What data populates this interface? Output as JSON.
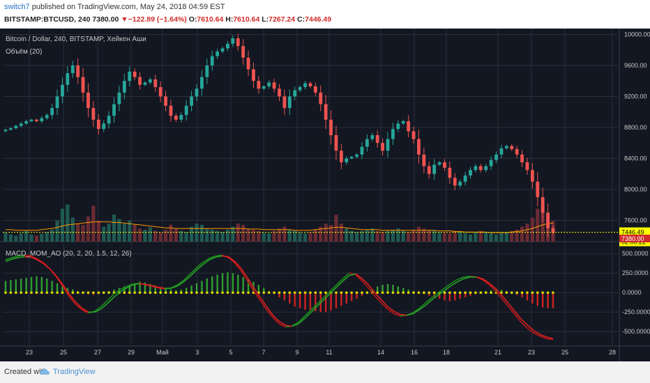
{
  "header": {
    "user": "switch7",
    "published": "published on TradingView.com, May 24, 2018 04:59 EST",
    "symbol": "BITSTAMP:BTCUSD, 240",
    "last": "7380.00",
    "change": "−122.89 (−1.64%)",
    "o_label": "O:",
    "o_value": "7610.64",
    "h_label": "H:",
    "h_value": "7610.64",
    "l_label": "L:",
    "l_value": "7267.24",
    "c_label": "C:",
    "c_value": "7446.49"
  },
  "legend": {
    "main": "Bitcoin / Dollar, 240, BITSTAMP, Хейкен Аши",
    "volume": "Объём (20)",
    "macd": "MACD_MOM_AO (20, 2, 20, 1.5, 12, 26)"
  },
  "footer": {
    "created": "Created with",
    "brand": "TradingView"
  },
  "colors": {
    "bg": "#131722",
    "up": "#26a69a",
    "down": "#ef5350",
    "grid": "#2a2e39",
    "price_line": "#ffff00",
    "ma": "#ff9800"
  },
  "chart_data": [
    {
      "type": "candlestick",
      "title": "Bitcoin / Dollar, 240, BITSTAMP, Хейкен Аши",
      "ylim": [
        7380,
        10040
      ],
      "yticks": [
        10000,
        9600,
        9200,
        8800,
        8400,
        8000,
        7600
      ],
      "ytick_labels": [
        "10000.00",
        "9600.00",
        "9200.00",
        "8800.00",
        "8400.00",
        "8000.00",
        "7600.00"
      ],
      "xtick_labels": [
        "23",
        "25",
        "27",
        "29",
        "Май",
        "3",
        "5",
        "7",
        "9",
        "11",
        "14",
        "16",
        "18",
        "21",
        "23",
        "25",
        "28"
      ],
      "price_label": "7446.49",
      "countdown_label": "02:00:22",
      "volume_label": "7380.00",
      "closes": [
        8770,
        8790,
        8820,
        8850,
        8880,
        8900,
        8880,
        8920,
        8960,
        9050,
        9200,
        9350,
        9500,
        9600,
        9450,
        9250,
        9050,
        8900,
        8780,
        8850,
        8950,
        9100,
        9250,
        9400,
        9520,
        9450,
        9350,
        9380,
        9420,
        9320,
        9200,
        9080,
        8950,
        8900,
        8960,
        9080,
        9200,
        9300,
        9450,
        9600,
        9720,
        9780,
        9820,
        9880,
        9950,
        9850,
        9700,
        9550,
        9400,
        9300,
        9330,
        9380,
        9300,
        9200,
        9050,
        9200,
        9280,
        9320,
        9370,
        9330,
        9250,
        9100,
        8900,
        8700,
        8500,
        8350,
        8400,
        8420,
        8450,
        8550,
        8650,
        8700,
        8600,
        8500,
        8650,
        8780,
        8850,
        8880,
        8750,
        8650,
        8450,
        8300,
        8200,
        8320,
        8350,
        8280,
        8150,
        8050,
        8100,
        8180,
        8250,
        8300,
        8250,
        8300,
        8380,
        8450,
        8530,
        8560,
        8520,
        8450,
        8350,
        8250,
        8100,
        7900,
        7700,
        7500,
        7446
      ],
      "volume": {
        "ylim": [
          0,
          1
        ],
        "values": [
          0.15,
          0.12,
          0.1,
          0.14,
          0.18,
          0.12,
          0.1,
          0.13,
          0.16,
          0.2,
          0.35,
          0.55,
          0.62,
          0.4,
          0.3,
          0.28,
          0.42,
          0.6,
          0.35,
          0.25,
          0.3,
          0.45,
          0.38,
          0.3,
          0.35,
          0.28,
          0.22,
          0.2,
          0.24,
          0.18,
          0.15,
          0.2,
          0.28,
          0.22,
          0.18,
          0.16,
          0.25,
          0.3,
          0.28,
          0.22,
          0.2,
          0.18,
          0.16,
          0.2,
          0.25,
          0.3,
          0.28,
          0.22,
          0.2,
          0.18,
          0.15,
          0.14,
          0.18,
          0.22,
          0.25,
          0.2,
          0.18,
          0.15,
          0.14,
          0.16,
          0.2,
          0.25,
          0.3,
          0.28,
          0.45,
          0.3,
          0.22,
          0.18,
          0.16,
          0.18,
          0.2,
          0.22,
          0.18,
          0.16,
          0.18,
          0.2,
          0.22,
          0.18,
          0.16,
          0.2,
          0.25,
          0.22,
          0.2,
          0.18,
          0.16,
          0.15,
          0.14,
          0.18,
          0.16,
          0.14,
          0.12,
          0.15,
          0.18,
          0.16,
          0.14,
          0.12,
          0.14,
          0.16,
          0.18,
          0.2,
          0.25,
          0.3,
          0.4,
          0.55,
          0.6,
          0.45,
          0.35
        ],
        "ma": [
          0.2,
          0.2,
          0.19,
          0.19,
          0.19,
          0.19,
          0.19,
          0.2,
          0.21,
          0.22,
          0.24,
          0.26,
          0.28,
          0.29,
          0.3,
          0.31,
          0.32,
          0.33,
          0.33,
          0.33,
          0.33,
          0.32,
          0.32,
          0.31,
          0.3,
          0.29,
          0.28,
          0.27,
          0.26,
          0.25,
          0.24,
          0.23,
          0.23,
          0.22,
          0.22,
          0.22,
          0.22,
          0.22,
          0.22,
          0.22,
          0.22,
          0.22,
          0.22,
          0.22,
          0.22,
          0.22,
          0.22,
          0.21,
          0.21,
          0.21,
          0.2,
          0.2,
          0.2,
          0.2,
          0.2,
          0.2,
          0.19,
          0.19,
          0.19,
          0.19,
          0.2,
          0.21,
          0.22,
          0.23,
          0.24,
          0.24,
          0.23,
          0.22,
          0.21,
          0.2,
          0.2,
          0.2,
          0.2,
          0.19,
          0.19,
          0.19,
          0.19,
          0.19,
          0.19,
          0.19,
          0.19,
          0.19,
          0.19,
          0.19,
          0.18,
          0.18,
          0.18,
          0.17,
          0.17,
          0.16,
          0.16,
          0.16,
          0.16,
          0.16,
          0.15,
          0.15,
          0.15,
          0.15,
          0.16,
          0.17,
          0.18,
          0.2,
          0.22,
          0.25,
          0.28,
          0.3,
          0.31
        ]
      }
    },
    {
      "type": "line",
      "title": "MACD_MOM_AO (20, 2, 20, 1.5, 12, 26)",
      "ylim": [
        -650,
        600
      ],
      "yticks": [
        500,
        250,
        0,
        -250,
        -500
      ],
      "ytick_labels": [
        "500.0000",
        "250.0000",
        "0.0000",
        "-250.0000",
        "-500.0000"
      ],
      "histogram": [
        150,
        160,
        170,
        180,
        190,
        200,
        210,
        200,
        180,
        150,
        120,
        90,
        60,
        40,
        20,
        0,
        -20,
        -30,
        -20,
        0,
        20,
        40,
        60,
        80,
        100,
        120,
        140,
        130,
        110,
        90,
        70,
        50,
        40,
        30,
        40,
        60,
        90,
        120,
        150,
        180,
        210,
        230,
        250,
        260,
        250,
        230,
        200,
        170,
        140,
        100,
        60,
        20,
        -20,
        -60,
        -100,
        -140,
        -180,
        -200,
        -220,
        -230,
        -240,
        -250,
        -250,
        -230,
        -200,
        -170,
        -140,
        -110,
        -80,
        -40,
        0,
        40,
        80,
        100,
        110,
        100,
        80,
        60,
        40,
        20,
        0,
        -20,
        -40,
        -60,
        -80,
        -100,
        -110,
        -100,
        -80,
        -60,
        -40,
        -20,
        0,
        20,
        30,
        40,
        35,
        20,
        0,
        -30,
        -60,
        -100,
        -140,
        -170,
        -190,
        -200,
        -200
      ],
      "series": [
        {
          "values": [
            420,
            450,
            470,
            480,
            470,
            430,
            380,
            300,
            200,
            80,
            -50,
            -150,
            -220,
            -260,
            -240,
            -180,
            -100,
            -20,
            40,
            80,
            110,
            120,
            100,
            80,
            60,
            50,
            60,
            100,
            160,
            240,
            320,
            390,
            440,
            470,
            480,
            450,
            380,
            280,
            150,
            20,
            -100,
            -220,
            -320,
            -400,
            -440,
            -430,
            -380,
            -300,
            -220,
            -140,
            -60,
            20,
            100,
            180,
            250,
            230,
            150,
            60,
            -40,
            -130,
            -210,
            -270,
            -300,
            -290,
            -260,
            -200,
            -130,
            -60,
            0,
            60,
            120,
            170,
            200,
            210,
            200,
            160,
            100,
            20,
            -80,
            -180,
            -280,
            -380,
            -460,
            -520,
            -560,
            -590,
            -600
          ]
        },
        {
          "values": [
            400,
            430,
            450,
            460,
            455,
            420,
            370,
            300,
            210,
            100,
            -20,
            -120,
            -200,
            -250,
            -250,
            -210,
            -140,
            -60,
            10,
            60,
            100,
            115,
            105,
            90,
            70,
            55,
            55,
            85,
            140,
            210,
            290,
            360,
            420,
            455,
            470,
            460,
            400,
            310,
            190,
            60,
            -60,
            -180,
            -290,
            -370,
            -420,
            -430,
            -400,
            -330,
            -250,
            -170,
            -90,
            -10,
            70,
            150,
            220,
            240,
            180,
            100,
            0,
            -90,
            -180,
            -240,
            -280,
            -290,
            -270,
            -220,
            -160,
            -90,
            -30,
            30,
            90,
            140,
            180,
            200,
            200,
            175,
            120,
            50,
            -40,
            -140,
            -240,
            -340,
            -420,
            -490,
            -540,
            -570,
            -590
          ]
        }
      ]
    }
  ]
}
